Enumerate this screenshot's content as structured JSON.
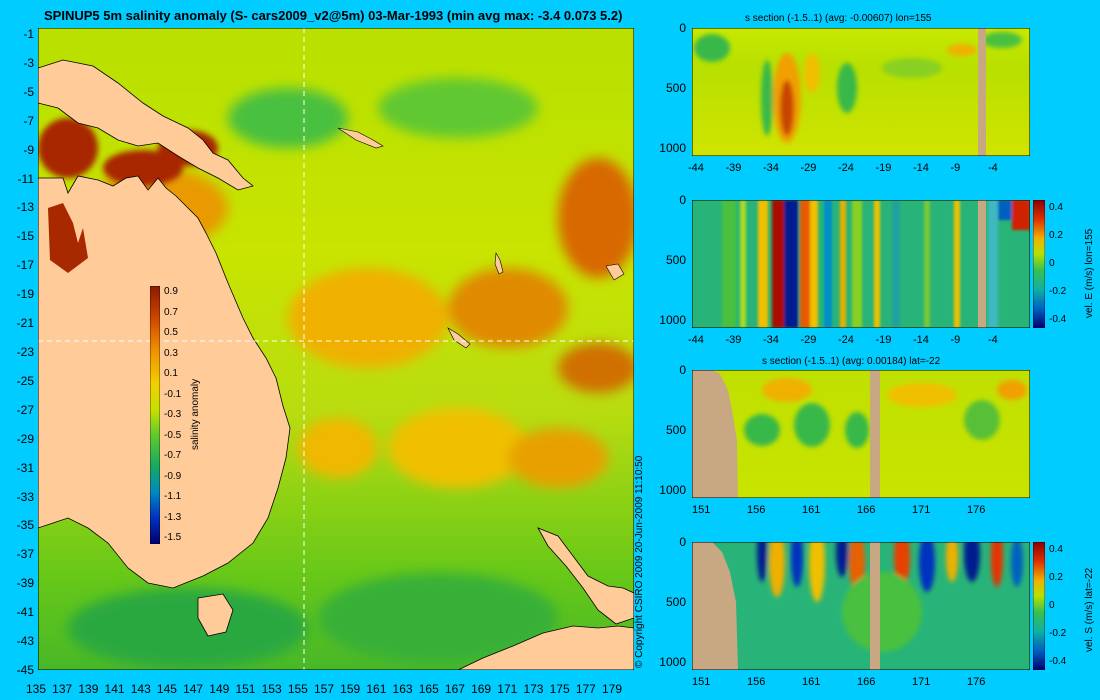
{
  "main": {
    "title": "SPINUP5 5m salinity anomaly (S- cars2009_v2@5m) 03-Mar-1993 (min avg max: -3.4 0.073 5.2)",
    "lat_ticks": [
      "-1",
      "-3",
      "-5",
      "-7",
      "-9",
      "-11",
      "-13",
      "-15",
      "-17",
      "-19",
      "-21",
      "-23",
      "-25",
      "-27",
      "-29",
      "-31",
      "-33",
      "-35",
      "-37",
      "-39",
      "-41",
      "-43",
      "-45"
    ],
    "lon_ticks": [
      "135",
      "137",
      "139",
      "141",
      "143",
      "145",
      "147",
      "149",
      "151",
      "153",
      "155",
      "157",
      "159",
      "161",
      "163",
      "165",
      "167",
      "169",
      "171",
      "173",
      "175",
      "177",
      "179"
    ],
    "colorbar": {
      "label": "salinity anomaly",
      "ticks": [
        "0.9",
        "0.7",
        "0.5",
        "0.3",
        "0.1",
        "-0.1",
        "-0.3",
        "-0.5",
        "-0.7",
        "-0.9",
        "-1.1",
        "-1.3",
        "-1.5"
      ]
    },
    "section_lon": 155,
    "section_lat": -22
  },
  "copyright": "© Copyright CSIRO 2009   20-Jun-2009 11:10:50",
  "panels": {
    "p1": {
      "title": "s section (-1.5..1) (avg: -0.00607) lon=155",
      "y_ticks": [
        "0",
        "500",
        "1000"
      ],
      "x_ticks": [
        "-44",
        "-39",
        "-34",
        "-29",
        "-24",
        "-19",
        "-14",
        "-9",
        "-4"
      ]
    },
    "p2": {
      "y_ticks": [
        "0",
        "500",
        "1000"
      ],
      "x_ticks": [
        "-44",
        "-39",
        "-34",
        "-29",
        "-24",
        "-19",
        "-14",
        "-9",
        "-4"
      ],
      "cb_label": "vel. E (m/s) lon=155",
      "cb_ticks": [
        "0.4",
        "0.2",
        "0",
        "-0.2",
        "-0.4"
      ]
    },
    "p3": {
      "title": "s section (-1.5..1) (avg: 0.00184) lat=-22",
      "y_ticks": [
        "0",
        "500",
        "1000"
      ],
      "x_ticks": [
        "151",
        "156",
        "161",
        "166",
        "171",
        "176"
      ]
    },
    "p4": {
      "y_ticks": [
        "0",
        "500",
        "1000"
      ],
      "x_ticks": [
        "151",
        "156",
        "161",
        "166",
        "171",
        "176"
      ],
      "cb_label": "vel. S (m/s) lat=-22",
      "cb_ticks": [
        "0.4",
        "0.2",
        "0",
        "-0.2",
        "-0.4"
      ]
    }
  },
  "colors": {
    "background": "#00ccff",
    "land": "#ffcc99",
    "section_land": "#c8a882",
    "field_base": "#aee000",
    "high_anomaly": "#a82800",
    "low_anomaly": "#1aa832"
  }
}
